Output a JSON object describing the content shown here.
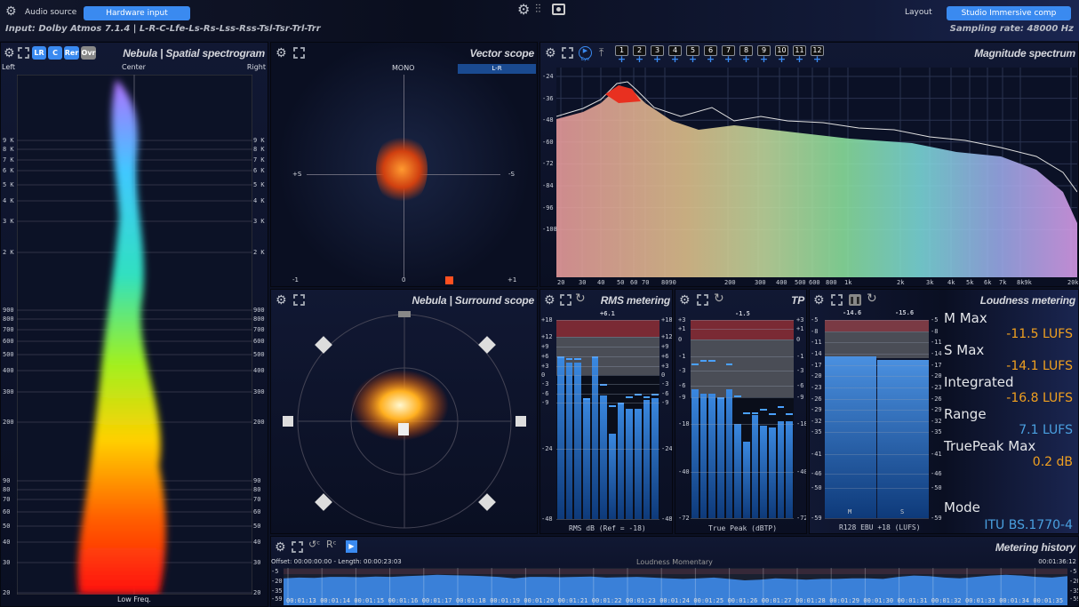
{
  "topbar": {
    "audio_source_label": "Audio source",
    "audio_source_value": "Hardware input",
    "layout_label": "Layout",
    "layout_value": "Studio Immersive comp",
    "input_info": "Input: Dolby Atmos 7.1.4 | L-R-C-Lfe-Ls-Rs-Lss-Rss-Tsl-Tsr-Trl-Trr",
    "sampling_rate": "Sampling rate: 48000 Hz",
    "icons": [
      "gear-icon",
      "mixer-icon",
      "screenshot-icon"
    ]
  },
  "spectrogram": {
    "title": "Nebula | Spatial spectrogram",
    "buttons": [
      "LR",
      "C",
      "Rer",
      "Ovr"
    ],
    "left": "Left",
    "center": "Center",
    "right": "Right",
    "bottom": "Low Freq.",
    "freq_labels": [
      "9 K",
      "8 K",
      "7 K",
      "6 K",
      "5 K",
      "4 K",
      "3 K",
      "2 K",
      "900",
      "800",
      "700",
      "600",
      "500",
      "400",
      "300",
      "200",
      "90",
      "80",
      "70",
      "60",
      "50",
      "40",
      "30",
      "20"
    ]
  },
  "vector": {
    "title": "Vector scope",
    "mono": "MONO",
    "mode": "L-R",
    "plus_s": "+S",
    "minus_s": "-S",
    "x_min": "-1",
    "x_mid": "0",
    "x_max": "+1"
  },
  "spectrum": {
    "title": "Magnitude spectrum",
    "channels": [
      "1",
      "2",
      "3",
      "4",
      "5",
      "6",
      "7",
      "8",
      "9",
      "10",
      "11",
      "12"
    ],
    "eye_label": "Eye",
    "y_labels": [
      "-24",
      "-36",
      "-48",
      "-60",
      "-72",
      "-84",
      "-96",
      "-108"
    ],
    "x_labels": [
      "20",
      "30",
      "40",
      "50",
      "60",
      "70",
      "8090",
      "200",
      "300",
      "400",
      "500",
      "600",
      "800",
      "1k",
      "2k",
      "3k",
      "4k",
      "5k",
      "6k",
      "7k",
      "8k9k",
      "20k"
    ]
  },
  "surround": {
    "title": "Nebula | Surround scope"
  },
  "rms": {
    "title": "RMS metering",
    "peak": "+6.1",
    "footer": "RMS dB (Ref = -18)",
    "ticks": [
      "+18",
      "+12",
      "+9",
      "+6",
      "+3",
      "0",
      "-3",
      "-6",
      "-9",
      "-24",
      "-48"
    ],
    "levels_db": [
      5.5,
      4,
      4,
      -7.5,
      5.5,
      -6.5,
      -19,
      -9,
      -11,
      -11,
      -8,
      -7.5
    ],
    "peaks_db": [
      6,
      5.5,
      5.5,
      -7.5,
      6,
      -3,
      -10,
      -9,
      -7,
      -6,
      -7,
      -6
    ]
  },
  "tp": {
    "title": "TP",
    "peak": "-1.5",
    "footer": "True Peak (dBTP)",
    "ticks": [
      "+3",
      "+1",
      "0",
      "-1",
      "-3",
      "-6",
      "-9",
      "-18",
      "-40",
      "-72"
    ],
    "levels_db": [
      -7,
      -8,
      -8,
      -9.5,
      -7,
      -18,
      -26,
      -15,
      -19,
      -19.5,
      -17,
      -17
    ],
    "peaks_db": [
      -2,
      -1.5,
      -1.5,
      -9,
      -2,
      -8.5,
      -14,
      -14,
      -13,
      -14.5,
      -12,
      -14.5
    ]
  },
  "loudness": {
    "title": "Loudness metering",
    "m_peak": "-14.6",
    "s_peak": "-15.6",
    "m_label": "M",
    "s_label": "S",
    "footer": "R128 EBU +18 (LUFS)",
    "ticks": [
      "-5",
      "-8",
      "-11",
      "-14",
      "-17",
      "-20",
      "-23",
      "-26",
      "-29",
      "-32",
      "-35",
      "-41",
      "-46",
      "-50",
      "-59"
    ],
    "m_level": -14.6,
    "s_level": -15.6,
    "stats": [
      {
        "label": "M Max",
        "value": "-11.5 LUFS",
        "color": "#f0a020"
      },
      {
        "label": "S Max",
        "value": "-14.1 LUFS",
        "color": "#f0a020"
      },
      {
        "label": "Integrated",
        "value": "-16.8 LUFS",
        "color": "#f0a020"
      },
      {
        "label": "Range",
        "value": "7.1 LUFS",
        "color": "#4aa0e0"
      },
      {
        "label": "TruePeak Max",
        "value": "0.2 dB",
        "color": "#f0a020"
      }
    ],
    "mode_label": "Mode",
    "mode_value": "ITU BS.1770-4"
  },
  "history": {
    "title": "Metering history",
    "offset": "Offset: 00:00:00:00 - Length: 00:00:23:03",
    "graph_title": "Loudness Momentary",
    "end_time": "00:01:36:12",
    "y_labels": [
      "-5",
      "-20",
      "-35",
      "-59"
    ],
    "times": [
      "00:01:13",
      "00:01:14",
      "00:01:15",
      "00:01:16",
      "00:01:17",
      "00:01:18",
      "00:01:19",
      "00:01:20",
      "00:01:21",
      "00:01:22",
      "00:01:23",
      "00:01:24",
      "00:01:25",
      "00:01:26",
      "00:01:27",
      "00:01:28",
      "00:01:29",
      "00:01:30",
      "00:01:31",
      "00:01:32",
      "00:01:33",
      "00:01:34",
      "00:01:35"
    ],
    "values_lufs": [
      -20,
      -19,
      -19.5,
      -18,
      -18,
      -18.5,
      -17.5,
      -18,
      -17,
      -16,
      -15,
      -15.5,
      -16,
      -17,
      -18,
      -20,
      -18,
      -18,
      -18.5,
      -18,
      -17.5,
      -19,
      -18.5,
      -18,
      -19,
      -20,
      -21,
      -20,
      -19,
      -21,
      -23,
      -22,
      -20,
      -21,
      -22,
      -21,
      -21,
      -20,
      -20,
      -21,
      -18,
      -16,
      -17,
      -19,
      -20,
      -18,
      -16,
      -15,
      -16,
      -18,
      -19,
      -17
    ]
  }
}
